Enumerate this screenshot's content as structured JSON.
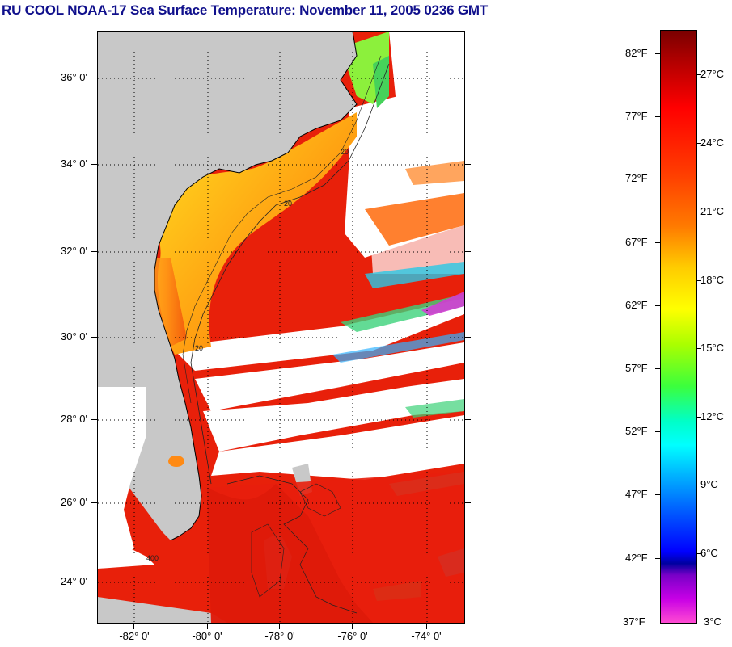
{
  "title": "RU COOL  NOAA-17  Sea Surface Temperature:  November 11, 2005 0236 GMT",
  "map": {
    "lat_labels": [
      "36° 0'",
      "34° 0'",
      "32° 0'",
      "30° 0'",
      "28° 0'",
      "26° 0'",
      "24° 0'"
    ],
    "lon_labels": [
      "-82° 0'",
      "-80° 0'",
      "-78° 0'",
      "-76° 0'",
      "-74° 0'"
    ],
    "contour_labels": [
      "20",
      "20",
      "20",
      "400"
    ]
  },
  "colorbar": {
    "f_labels": [
      "82°F",
      "77°F",
      "72°F",
      "67°F",
      "62°F",
      "57°F",
      "52°F",
      "47°F",
      "42°F",
      "37°F"
    ],
    "c_labels": [
      "27°C",
      "24°C",
      "21°C",
      "18°C",
      "15°C",
      "12°C",
      "9°C",
      "6°C",
      "3°C"
    ]
  },
  "colors": {
    "land": "#c8c8c8",
    "cloud": "#ffffff",
    "warm_sst": "#e81e0c",
    "title": "#10108c"
  }
}
